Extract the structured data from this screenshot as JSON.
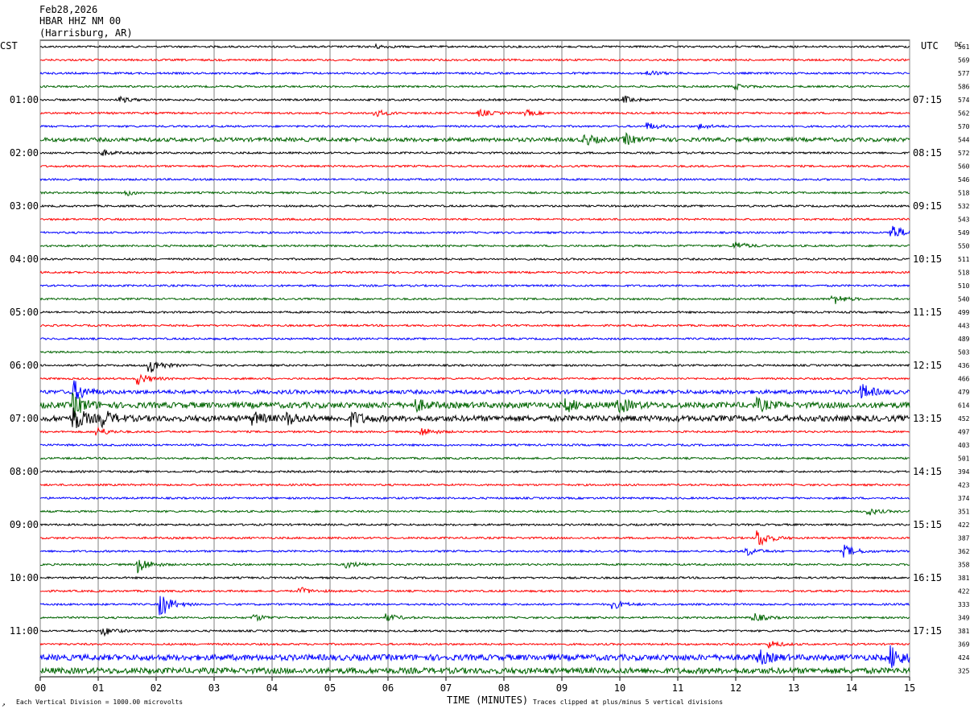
{
  "header": {
    "date": "Feb28,2026",
    "station": "HBAR HHZ NM 00",
    "location": "(Harrisburg, AR)"
  },
  "left_tz": "CST",
  "right_tz": "UTC",
  "dc_label": "DC",
  "footer": {
    "scale_note": "Each Vertical Division = 1000.00 microvolts",
    "clip_note": "Traces clipped at plus/minus 5 vertical divisions",
    "corner_mark": "↗"
  },
  "colors": {
    "trace_cycle": [
      "#000000",
      "#ff0000",
      "#0000ff",
      "#006400"
    ],
    "grid": "#808080"
  },
  "chart_data": {
    "type": "line",
    "title": "",
    "xlabel": "TIME (MINUTES)",
    "ylabel": "",
    "xlim": [
      0,
      15
    ],
    "x_ticks": [
      "00",
      "01",
      "02",
      "03",
      "04",
      "05",
      "06",
      "07",
      "08",
      "09",
      "10",
      "11",
      "12",
      "13",
      "14",
      "15"
    ],
    "left_hour_labels": [
      "01:00",
      "02:00",
      "03:00",
      "04:00",
      "05:00",
      "06:00",
      "07:00",
      "08:00",
      "09:00",
      "10:00",
      "11:00"
    ],
    "right_hour_labels": [
      "07:15",
      "08:15",
      "09:15",
      "10:15",
      "11:15",
      "12:15",
      "13:15",
      "14:15",
      "15:15",
      "16:15",
      "17:15"
    ],
    "dc_offsets": [
      561,
      569,
      577,
      586,
      574,
      562,
      570,
      544,
      572,
      560,
      546,
      518,
      532,
      543,
      549,
      550,
      511,
      518,
      510,
      540,
      499,
      443,
      489,
      503,
      436,
      466,
      479,
      614,
      452,
      497,
      403,
      501,
      394,
      423,
      374,
      351,
      422,
      387,
      362,
      358,
      381,
      422,
      333,
      349,
      381,
      369,
      424,
      325
    ],
    "noise_levels": [
      1,
      1,
      1,
      1,
      1,
      1,
      1,
      2,
      1,
      1,
      1,
      1,
      1,
      1,
      1,
      1,
      1,
      1,
      1,
      1,
      1,
      1,
      1,
      1,
      1,
      1,
      2,
      3,
      3,
      1,
      1,
      1,
      1,
      1,
      1,
      1,
      1,
      1,
      1,
      1,
      1,
      1,
      1,
      1,
      1,
      1,
      3,
      3
    ],
    "events": [
      {
        "trace": 0,
        "minute": 5.8,
        "amp": 2
      },
      {
        "trace": 2,
        "minute": 10.5,
        "amp": 3
      },
      {
        "trace": 3,
        "minute": 12.0,
        "amp": 3
      },
      {
        "trace": 4,
        "minute": 1.4,
        "amp": 3
      },
      {
        "trace": 4,
        "minute": 10.1,
        "amp": 4
      },
      {
        "trace": 5,
        "minute": 5.8,
        "amp": 4
      },
      {
        "trace": 5,
        "minute": 7.6,
        "amp": 4
      },
      {
        "trace": 5,
        "minute": 8.4,
        "amp": 3
      },
      {
        "trace": 6,
        "minute": 10.5,
        "amp": 4
      },
      {
        "trace": 6,
        "minute": 11.4,
        "amp": 3
      },
      {
        "trace": 7,
        "minute": 9.4,
        "amp": 6
      },
      {
        "trace": 7,
        "minute": 10.1,
        "amp": 6
      },
      {
        "trace": 8,
        "minute": 1.1,
        "amp": 3
      },
      {
        "trace": 11,
        "minute": 1.5,
        "amp": 3
      },
      {
        "trace": 14,
        "minute": 14.7,
        "amp": 10
      },
      {
        "trace": 15,
        "minute": 12.0,
        "amp": 5
      },
      {
        "trace": 19,
        "minute": 13.7,
        "amp": 6
      },
      {
        "trace": 24,
        "minute": 1.9,
        "amp": 10
      },
      {
        "trace": 25,
        "minute": 1.7,
        "amp": 7
      },
      {
        "trace": 26,
        "minute": 0.6,
        "amp": 12
      },
      {
        "trace": 26,
        "minute": 14.2,
        "amp": 8
      },
      {
        "trace": 27,
        "minute": 0.6,
        "amp": 12
      },
      {
        "trace": 27,
        "minute": 6.5,
        "amp": 6
      },
      {
        "trace": 27,
        "minute": 9.1,
        "amp": 6
      },
      {
        "trace": 27,
        "minute": 10.0,
        "amp": 8
      },
      {
        "trace": 27,
        "minute": 12.4,
        "amp": 6
      },
      {
        "trace": 28,
        "minute": 0.6,
        "amp": 14
      },
      {
        "trace": 28,
        "minute": 1.1,
        "amp": 8
      },
      {
        "trace": 28,
        "minute": 3.7,
        "amp": 6
      },
      {
        "trace": 28,
        "minute": 4.3,
        "amp": 6
      },
      {
        "trace": 28,
        "minute": 5.4,
        "amp": 7
      },
      {
        "trace": 29,
        "minute": 1.0,
        "amp": 5
      },
      {
        "trace": 29,
        "minute": 6.6,
        "amp": 5
      },
      {
        "trace": 35,
        "minute": 14.3,
        "amp": 4
      },
      {
        "trace": 37,
        "minute": 12.4,
        "amp": 11
      },
      {
        "trace": 38,
        "minute": 12.2,
        "amp": 5
      },
      {
        "trace": 38,
        "minute": 13.9,
        "amp": 7
      },
      {
        "trace": 39,
        "minute": 1.7,
        "amp": 10
      },
      {
        "trace": 39,
        "minute": 5.3,
        "amp": 4
      },
      {
        "trace": 41,
        "minute": 4.5,
        "amp": 4
      },
      {
        "trace": 42,
        "minute": 2.1,
        "amp": 14
      },
      {
        "trace": 42,
        "minute": 9.9,
        "amp": 5
      },
      {
        "trace": 43,
        "minute": 3.7,
        "amp": 4
      },
      {
        "trace": 43,
        "minute": 6.0,
        "amp": 4
      },
      {
        "trace": 43,
        "minute": 12.3,
        "amp": 6
      },
      {
        "trace": 44,
        "minute": 1.1,
        "amp": 5
      },
      {
        "trace": 45,
        "minute": 12.6,
        "amp": 4
      },
      {
        "trace": 46,
        "minute": 12.4,
        "amp": 8
      },
      {
        "trace": 46,
        "minute": 14.7,
        "amp": 12
      }
    ]
  }
}
